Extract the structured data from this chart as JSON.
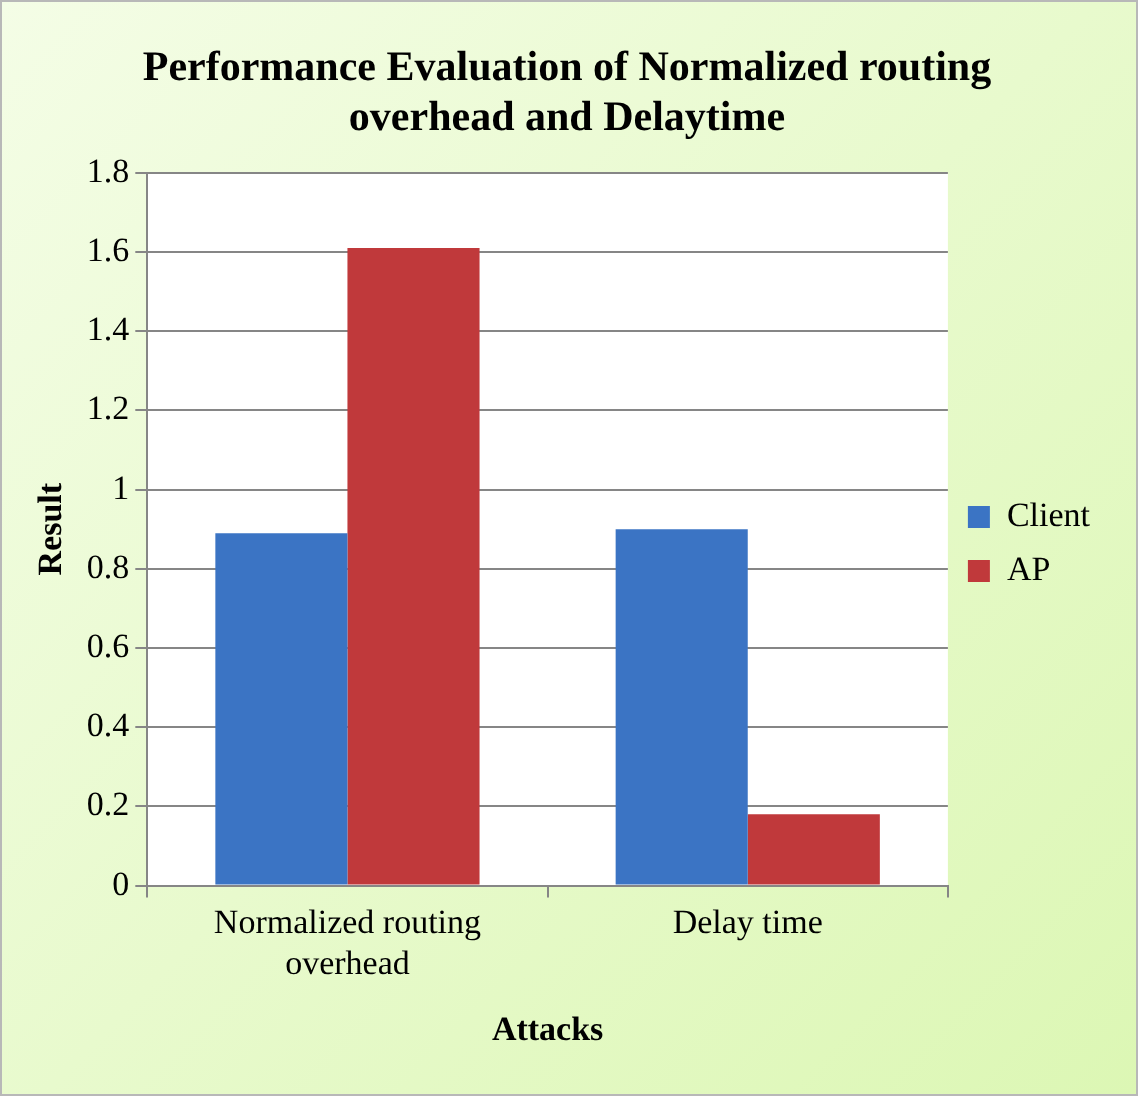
{
  "chart_data": {
    "type": "bar",
    "title": "Performance Evaluation of Normalized routing overhead and Delaytime",
    "xlabel": "Attacks",
    "ylabel": "Result",
    "categories": [
      "Normalized routing overhead",
      "Delay time"
    ],
    "series": [
      {
        "name": "Client",
        "color": "#3b74c4",
        "values": [
          0.89,
          0.9
        ]
      },
      {
        "name": "AP",
        "color": "#c0393b",
        "values": [
          1.61,
          0.18
        ]
      }
    ],
    "ylim": [
      0,
      1.8
    ],
    "yticks": [
      0,
      0.2,
      0.4,
      0.6,
      0.8,
      1,
      1.2,
      1.4,
      1.6,
      1.8
    ],
    "grid": "y",
    "legend": "right"
  }
}
